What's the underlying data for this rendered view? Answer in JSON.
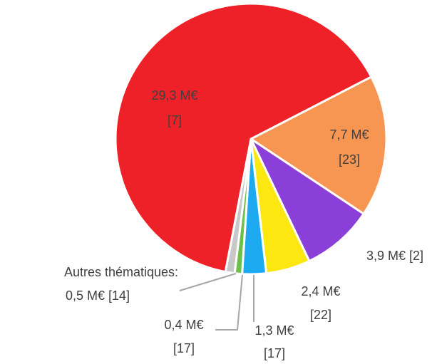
{
  "chart_data": {
    "type": "pie",
    "values": [
      7.7,
      3.9,
      2.4,
      1.3,
      0.4,
      0.5,
      29.3
    ],
    "value_labels": [
      "7,7 M€",
      "3,9 M€",
      "2,4 M€",
      "1,3 M€",
      "0,4 M€",
      "0,5 M€",
      "29,3 M€"
    ],
    "count_labels": [
      "[23]",
      "[2]",
      "[22]",
      "[17]",
      "[17]",
      "[14]",
      "[7]"
    ],
    "colors": [
      "#f79552",
      "#8b3fd9",
      "#fde711",
      "#1eaaf1",
      "#6ac04a",
      "#c8c8c8",
      "#ee2129"
    ],
    "annotation": "Autres thématiques:"
  }
}
